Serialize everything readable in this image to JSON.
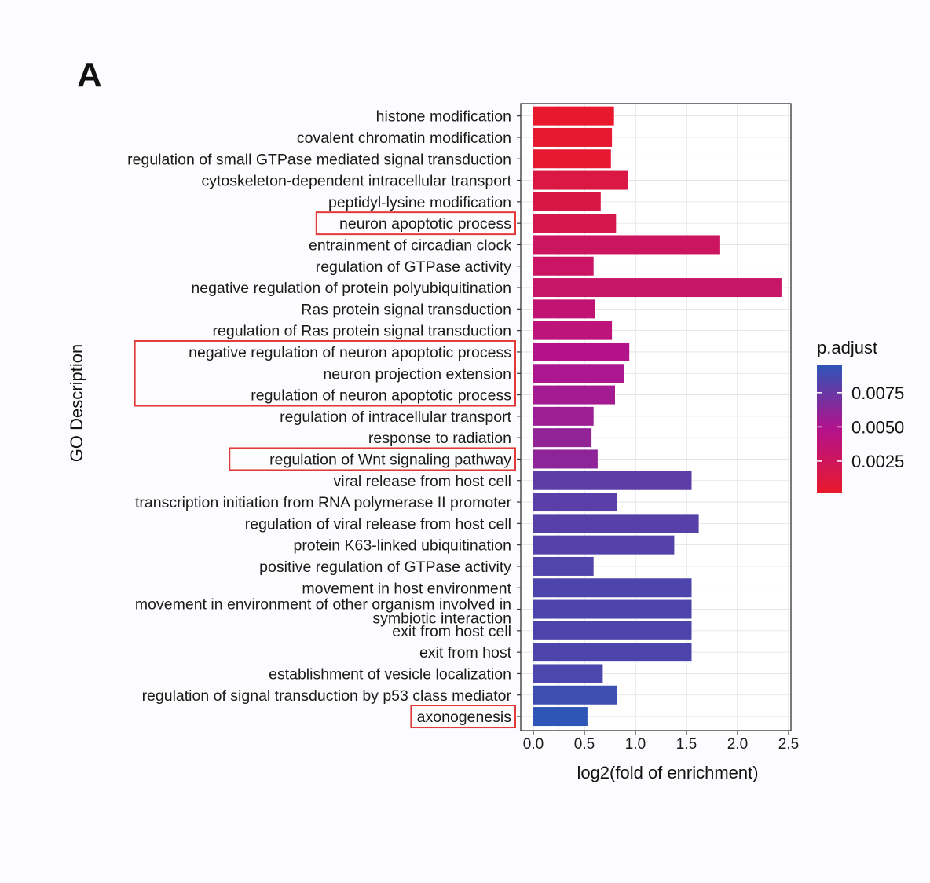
{
  "panel_label": "A",
  "colors": {
    "low": "#e8192c",
    "mid": "#b3128c",
    "high": "#2f55b6",
    "grid": "#e1e1e6",
    "highlight_box": "#e03a3a"
  },
  "chart_data": {
    "type": "bar",
    "orientation": "horizontal",
    "xlabel": "log2(fold of enrichment)",
    "ylabel": "GO Description",
    "xlim": [
      0,
      2.5
    ],
    "xticks": [
      "0.0",
      "0.5",
      "1.0",
      "1.5",
      "2.0",
      "2.5"
    ],
    "legend": {
      "title": "p.adjust",
      "range": [
        0.0002,
        0.0095
      ],
      "ticks": [
        "0.0075",
        "0.0050",
        "0.0025"
      ],
      "tick_values": [
        0.0075,
        0.005,
        0.0025
      ],
      "position": "right"
    },
    "categories": [
      "histone modification",
      "covalent chromatin modification",
      "regulation of small GTPase mediated signal transduction",
      "cytoskeleton-dependent intracellular transport",
      "peptidyl-lysine modification",
      "neuron apoptotic process",
      "entrainment of circadian clock",
      "regulation of GTPase activity",
      "negative regulation of protein polyubiquitination",
      "Ras protein signal transduction",
      "regulation of Ras protein signal transduction",
      "negative regulation of neuron apoptotic process",
      "neuron projection extension",
      "regulation of neuron apoptotic process",
      "regulation of intracellular transport",
      "response to radiation",
      "regulation of Wnt signaling pathway",
      "viral release from host cell",
      "transcription initiation from RNA polymerase II promoter",
      "regulation of viral release from host cell",
      "protein K63-linked ubiquitination",
      "positive regulation of GTPase activity",
      "movement in host environment",
      "movement in environment of other organism involved in symbiotic interaction",
      "exit from host cell",
      "exit from host",
      "establishment of vesicle localization",
      "regulation of signal transduction by p53 class mediator",
      "axonogenesis"
    ],
    "values": [
      0.79,
      0.77,
      0.76,
      0.93,
      0.66,
      0.81,
      1.83,
      0.59,
      2.43,
      0.6,
      0.77,
      0.94,
      0.89,
      0.8,
      0.59,
      0.57,
      0.63,
      1.55,
      0.82,
      1.62,
      1.38,
      0.59,
      1.55,
      1.55,
      1.55,
      1.55,
      0.68,
      0.82,
      0.53
    ],
    "p_adjust": [
      0.0002,
      0.0004,
      0.0005,
      0.0013,
      0.0015,
      0.0018,
      0.0027,
      0.0029,
      0.0031,
      0.0036,
      0.004,
      0.0048,
      0.0051,
      0.0054,
      0.0057,
      0.006,
      0.0062,
      0.0078,
      0.008,
      0.0081,
      0.0082,
      0.0083,
      0.0084,
      0.0084,
      0.0084,
      0.0084,
      0.0085,
      0.009,
      0.0095
    ],
    "highlighted_groups": [
      [
        5
      ],
      [
        11,
        12,
        13
      ],
      [
        16
      ],
      [
        28
      ]
    ]
  }
}
